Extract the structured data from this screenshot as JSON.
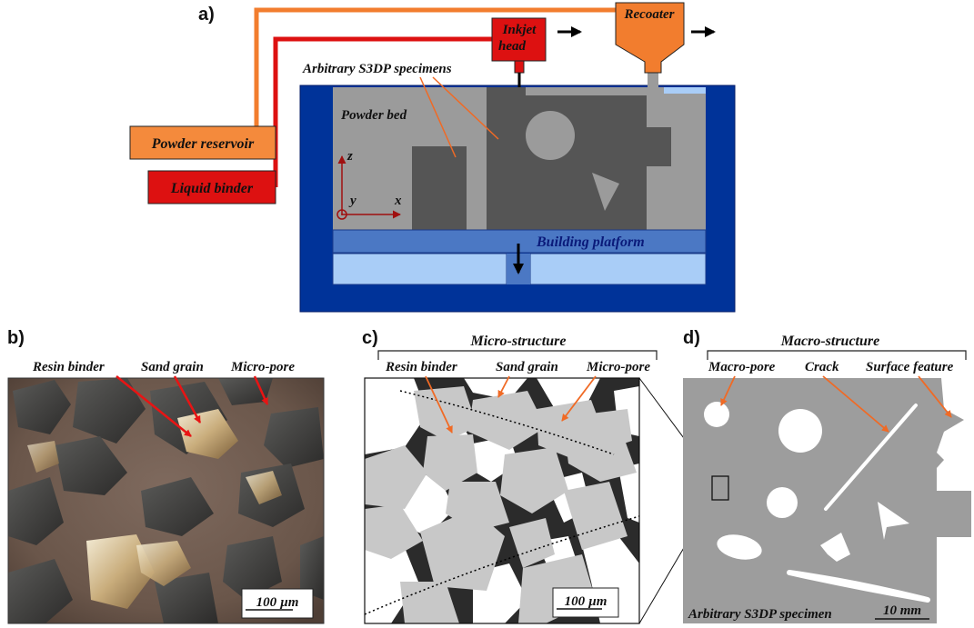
{
  "panels": {
    "a": "a)",
    "b": "b)",
    "c": "c)",
    "d": "d)"
  },
  "labels": {
    "powder_reservoir": "Powder reservoir",
    "liquid_binder": "Liquid binder",
    "inkjet_line1": "Inkjet",
    "inkjet_line2": "head",
    "recoater": "Recoater",
    "specimens": "Arbitrary S3DP specimens",
    "powder_bed": "Powder bed",
    "building_platform": "Building platform",
    "axis_x": "x",
    "axis_y": "y",
    "axis_z": "z"
  },
  "micrograph": {
    "resin_binder": "Resin binder",
    "sand_grain": "Sand grain",
    "micro_pore": "Micro-pore",
    "scale_number": "100",
    "scale_unit": "µm"
  },
  "micro": {
    "bracket_title": "Micro-structure",
    "resin_binder": "Resin binder",
    "sand_grain": "Sand grain",
    "micro_pore": "Micro-pore",
    "scale_number": "100",
    "scale_unit": "µm"
  },
  "macro": {
    "bracket_title": "Macro-structure",
    "macro_pore": "Macro-pore",
    "crack": "Crack",
    "surface_feature": "Surface feature",
    "specimen": "Arbitrary S3DP specimen",
    "scale": "10 mm"
  },
  "colors": {
    "orange": "#f27d2e",
    "red": "#dd1111",
    "navy": "#003399",
    "light_blue": "#a9cdf7",
    "platform_blue": "#4b78c4",
    "bed_gray": "#9b9b9b",
    "part_gray": "#555555",
    "grain_gray": "#c8c8c8",
    "binder_dark": "#2b2b2b",
    "macro_gray": "#9d9d9d"
  }
}
